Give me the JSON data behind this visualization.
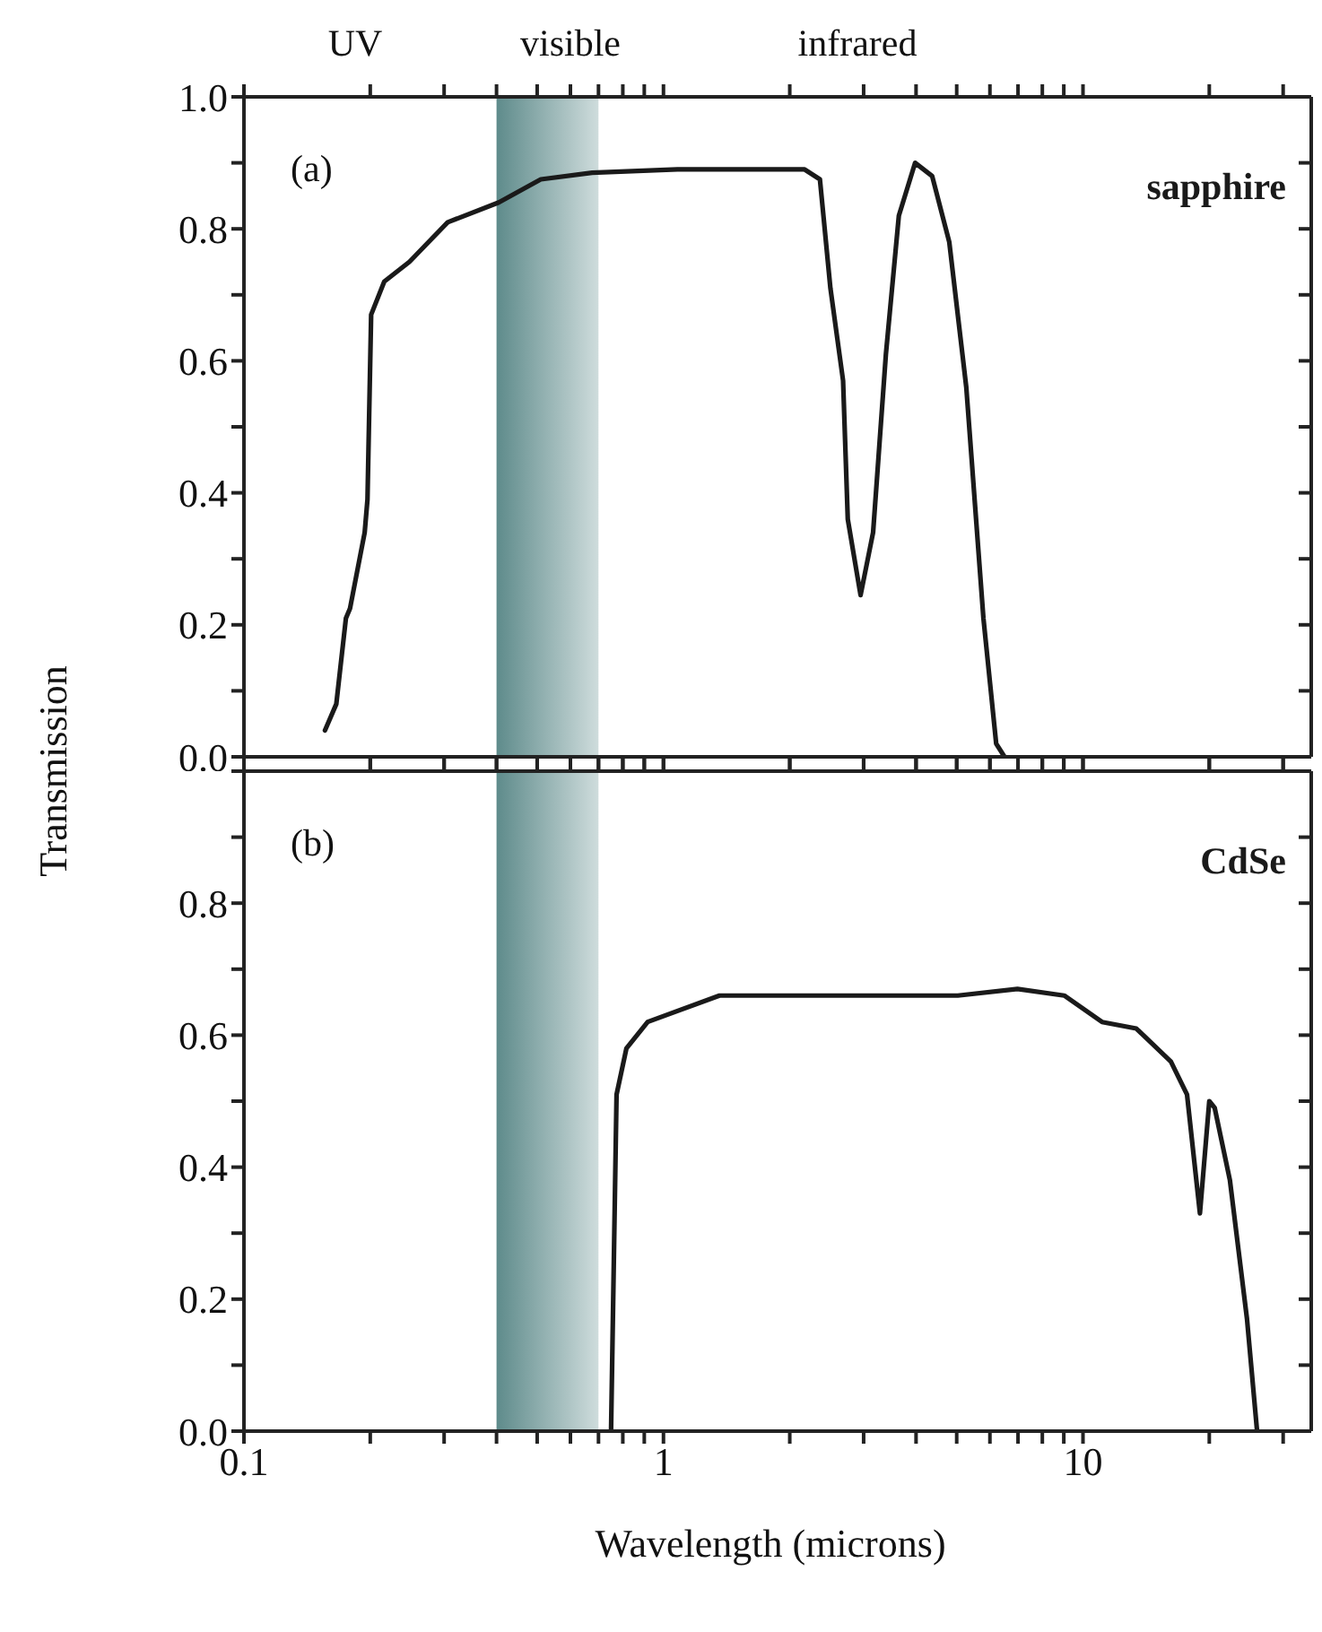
{
  "chart_data": [
    {
      "type": "line",
      "ylabel": "Transmission",
      "annotations": [
        "UV",
        "visible",
        "infrared",
        "(a)"
      ],
      "series": [
        {
          "name": "sapphire",
          "color": "#1a1a1a",
          "x": [
            0.156,
            0.166,
            0.175,
            0.179,
            0.194,
            0.197,
            0.201,
            0.216,
            0.248,
            0.306,
            0.405,
            0.51,
            0.676,
            1.08,
            2.17,
            2.36,
            2.5,
            2.68,
            2.75,
            2.95,
            3.16,
            3.39,
            3.64,
            3.98,
            4.37,
            4.8,
            5.27,
            5.79,
            6.21,
            6.5
          ],
          "values": [
            0.04,
            0.08,
            0.21,
            0.225,
            0.34,
            0.39,
            0.67,
            0.72,
            0.75,
            0.81,
            0.84,
            0.875,
            0.885,
            0.89,
            0.89,
            0.875,
            0.71,
            0.57,
            0.36,
            0.245,
            0.34,
            0.61,
            0.82,
            0.9,
            0.88,
            0.78,
            0.56,
            0.21,
            0.02,
            0
          ]
        }
      ],
      "bands": [
        {
          "axis": "x",
          "from": 0.4,
          "to": 0.7,
          "color": "#5e8b8b"
        }
      ],
      "log": "x",
      "xlim": [
        0.1,
        35
      ],
      "xticks": [
        0.1,
        {
          "value": 0.2,
          "label": null
        },
        {
          "value": 0.3,
          "label": null
        },
        {
          "value": 0.4,
          "label": null
        },
        {
          "value": 0.5,
          "label": null
        },
        {
          "value": 0.6,
          "label": null
        },
        {
          "value": 0.7,
          "label": null
        },
        {
          "value": 0.8,
          "label": null
        },
        {
          "value": 0.9,
          "label": null
        },
        1,
        {
          "value": 2,
          "label": null
        },
        {
          "value": 3,
          "label": null
        },
        {
          "value": 4,
          "label": null
        },
        {
          "value": 5,
          "label": null
        },
        {
          "value": 6,
          "label": null
        },
        {
          "value": 7,
          "label": null
        },
        {
          "value": 8,
          "label": null
        },
        {
          "value": 9,
          "label": null
        },
        10,
        {
          "value": 20,
          "label": null
        },
        {
          "value": 30,
          "label": null
        }
      ],
      "ylim": [
        0,
        1
      ],
      "yticks": [
        {
          "value": 0,
          "label": "0.0"
        },
        {
          "value": 0.1,
          "label": null
        },
        {
          "value": 0.2,
          "label": "0.2"
        },
        {
          "value": 0.3,
          "label": null
        },
        {
          "value": 0.4,
          "label": "0.4"
        },
        {
          "value": 0.5,
          "label": null
        },
        {
          "value": 0.6,
          "label": "0.6"
        },
        {
          "value": 0.7,
          "label": null
        },
        {
          "value": 0.8,
          "label": "0.8"
        },
        {
          "value": 0.9,
          "label": null
        },
        {
          "value": 1,
          "label": "1.0"
        }
      ],
      "tick_labels": "y"
    },
    {
      "type": "line",
      "xlabel": "Wavelength (microns)",
      "annotations": [
        "(b)"
      ],
      "series": [
        {
          "name": "CdSe",
          "color": "#1a1a1a",
          "x": [
            0.75,
            0.773,
            0.816,
            0.917,
            1.36,
            2.75,
            5.03,
            6.98,
            9.02,
            11.1,
            13.4,
            16.2,
            17.7,
            19.0,
            20,
            20.6,
            22.4,
            24.6,
            26
          ],
          "values": [
            0,
            0.51,
            0.58,
            0.62,
            0.66,
            0.66,
            0.66,
            0.67,
            0.66,
            0.62,
            0.61,
            0.56,
            0.51,
            0.33,
            0.5,
            0.49,
            0.38,
            0.17,
            0
          ]
        }
      ],
      "bands": [
        {
          "axis": "x",
          "from": 0.4,
          "to": 0.7,
          "color": "#5e8b8b"
        }
      ],
      "log": "x",
      "xlim": [
        0.1,
        35
      ],
      "xticks": [
        0.1,
        {
          "value": 0.2,
          "label": null
        },
        {
          "value": 0.3,
          "label": null
        },
        {
          "value": 0.4,
          "label": null
        },
        {
          "value": 0.5,
          "label": null
        },
        {
          "value": 0.6,
          "label": null
        },
        {
          "value": 0.7,
          "label": null
        },
        {
          "value": 0.8,
          "label": null
        },
        {
          "value": 0.9,
          "label": null
        },
        1,
        {
          "value": 2,
          "label": null
        },
        {
          "value": 3,
          "label": null
        },
        {
          "value": 4,
          "label": null
        },
        {
          "value": 5,
          "label": null
        },
        {
          "value": 6,
          "label": null
        },
        {
          "value": 7,
          "label": null
        },
        {
          "value": 8,
          "label": null
        },
        {
          "value": 9,
          "label": null
        },
        10,
        {
          "value": 20,
          "label": null
        },
        {
          "value": 30,
          "label": null
        }
      ],
      "ylim": [
        0,
        1
      ],
      "yticks": [
        {
          "value": 0,
          "label": "0.0"
        },
        {
          "value": 0.1,
          "label": null
        },
        {
          "value": 0.2,
          "label": "0.2"
        },
        {
          "value": 0.3,
          "label": null
        },
        {
          "value": 0.4,
          "label": "0.4"
        },
        {
          "value": 0.5,
          "label": null
        },
        {
          "value": 0.6,
          "label": "0.6"
        },
        {
          "value": 0.7,
          "label": null
        },
        {
          "value": 0.8,
          "label": "0.8"
        },
        {
          "value": 0.9,
          "label": null
        },
        {
          "value": 1,
          "label": null
        }
      ]
    }
  ]
}
